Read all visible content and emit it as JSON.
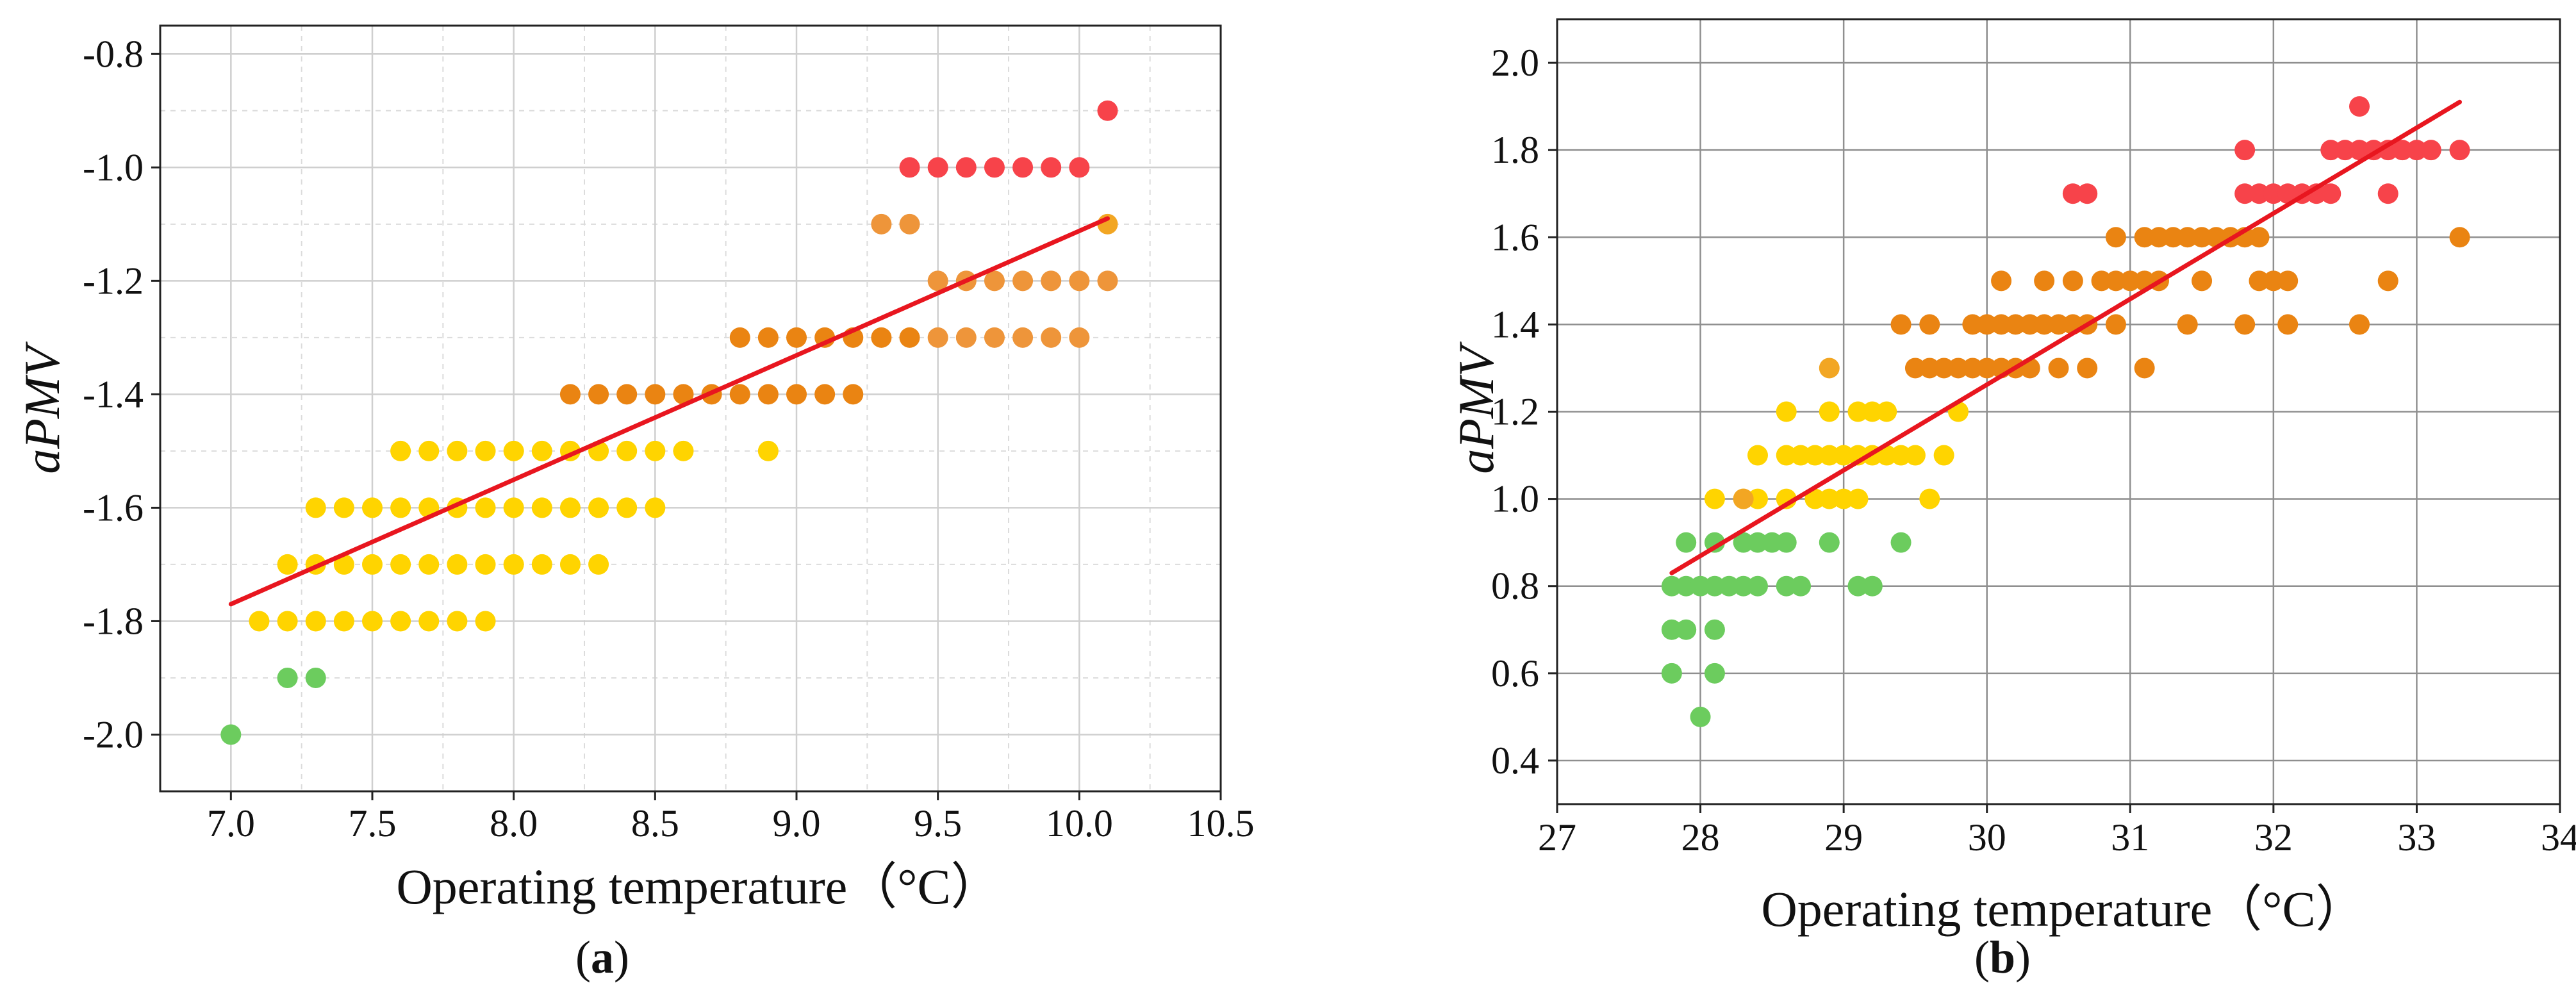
{
  "chart_data": [
    {
      "panel": "a",
      "type": "scatter",
      "caption": {
        "open": "(",
        "letter": "a",
        "close": ")"
      },
      "xlabel": "Operating temperature（°C）",
      "ylabel": "aPMV",
      "xlim": [
        6.75,
        10.5
      ],
      "ylim": [
        -2.1,
        -0.75
      ],
      "x_ticks": [
        {
          "v": 7.0,
          "label": "7.0"
        },
        {
          "v": 7.5,
          "label": "7.5"
        },
        {
          "v": 8.0,
          "label": "8.0"
        },
        {
          "v": 8.5,
          "label": "8.5"
        },
        {
          "v": 9.0,
          "label": "9.0"
        },
        {
          "v": 9.5,
          "label": "9.5"
        },
        {
          "v": 10.0,
          "label": "10.0"
        },
        {
          "v": 10.5,
          "label": "10.5"
        }
      ],
      "y_ticks": [
        {
          "v": -2.0,
          "label": "-2.0"
        },
        {
          "v": -1.8,
          "label": "-1.8"
        },
        {
          "v": -1.6,
          "label": "-1.6"
        },
        {
          "v": -1.4,
          "label": "-1.4"
        },
        {
          "v": -1.2,
          "label": "-1.2"
        },
        {
          "v": -1.0,
          "label": "-1.0"
        },
        {
          "v": -0.8,
          "label": "-0.8"
        }
      ],
      "grid": true,
      "colors": {
        "green": "#6ccc5e",
        "yellow": "#ffd400",
        "amber": "#f2a623",
        "orange": "#ea8412",
        "orangeL": "#ee953a",
        "red": "#f7434a",
        "fit": "#e8161f"
      },
      "fit_line": {
        "x": [
          7.0,
          10.1
        ],
        "y": [
          -1.77,
          -1.09
        ]
      },
      "groups": [
        {
          "color": "green",
          "y": -2.0,
          "x": [
            7.0
          ]
        },
        {
          "color": "green",
          "y": -1.9,
          "x": [
            7.2,
            7.3
          ]
        },
        {
          "color": "yellow",
          "y": -1.8,
          "x": [
            7.1,
            7.2,
            7.3,
            7.4,
            7.5,
            7.6,
            7.7,
            7.8,
            7.9
          ]
        },
        {
          "color": "yellow",
          "y": -1.7,
          "x": [
            7.2,
            7.3,
            7.4,
            7.5,
            7.6,
            7.7,
            7.8,
            7.9,
            8.0,
            8.1,
            8.2,
            8.3
          ]
        },
        {
          "color": "yellow",
          "y": -1.6,
          "x": [
            7.3,
            7.4,
            7.5,
            7.6,
            7.7,
            7.8,
            7.9,
            8.0,
            8.1,
            8.2,
            8.3,
            8.4,
            8.5
          ]
        },
        {
          "color": "yellow",
          "y": -1.5,
          "x": [
            7.6,
            7.7,
            7.8,
            7.9,
            8.0,
            8.1,
            8.2,
            8.3,
            8.4,
            8.5,
            8.6,
            8.9
          ]
        },
        {
          "color": "orange",
          "y": -1.4,
          "x": [
            8.2,
            8.3,
            8.4,
            8.5,
            8.6,
            8.7,
            8.8,
            8.9,
            9.0,
            9.1,
            9.2
          ]
        },
        {
          "color": "orange",
          "y": -1.3,
          "x": [
            8.8,
            8.9,
            9.0,
            9.1,
            9.2,
            9.3,
            9.4
          ]
        },
        {
          "color": "orangeL",
          "y": -1.3,
          "x": [
            9.5,
            9.6,
            9.7,
            9.8,
            9.9,
            10.0
          ]
        },
        {
          "color": "orangeL",
          "y": -1.2,
          "x": [
            9.5,
            9.6,
            9.7,
            9.8,
            9.9,
            10.0,
            10.1
          ]
        },
        {
          "color": "orangeL",
          "y": -1.1,
          "x": [
            9.3,
            9.4
          ]
        },
        {
          "color": "amber",
          "y": -1.1,
          "x": [
            10.1
          ]
        },
        {
          "color": "red",
          "y": -1.0,
          "x": [
            9.4,
            9.5,
            9.6,
            9.7,
            9.8,
            9.9,
            10.0
          ]
        },
        {
          "color": "red",
          "y": -0.9,
          "x": [
            10.1
          ]
        }
      ]
    },
    {
      "panel": "b",
      "type": "scatter",
      "caption": {
        "open": "(",
        "letter": "b",
        "close": ")"
      },
      "xlabel": "Operating temperature（°C）",
      "ylabel": "aPMV",
      "xlim": [
        27,
        34
      ],
      "ylim": [
        0.3,
        2.1
      ],
      "x_ticks": [
        {
          "v": 27,
          "label": "27"
        },
        {
          "v": 28,
          "label": "28"
        },
        {
          "v": 29,
          "label": "29"
        },
        {
          "v": 30,
          "label": "30"
        },
        {
          "v": 31,
          "label": "31"
        },
        {
          "v": 32,
          "label": "32"
        },
        {
          "v": 33,
          "label": "33"
        },
        {
          "v": 34,
          "label": "34"
        }
      ],
      "y_ticks": [
        {
          "v": 0.4,
          "label": "0.4"
        },
        {
          "v": 0.6,
          "label": "0.6"
        },
        {
          "v": 0.8,
          "label": "0.8"
        },
        {
          "v": 1.0,
          "label": "1.0"
        },
        {
          "v": 1.2,
          "label": "1.2"
        },
        {
          "v": 1.4,
          "label": "1.4"
        },
        {
          "v": 1.6,
          "label": "1.6"
        },
        {
          "v": 1.8,
          "label": "1.8"
        },
        {
          "v": 2.0,
          "label": "2.0"
        }
      ],
      "grid": true,
      "colors": {
        "green": "#6ccc5e",
        "yellow": "#ffd400",
        "amber": "#f2a623",
        "orange": "#ea8412",
        "orangeL": "#ee953a",
        "red": "#f7434a",
        "fit": "#e8161f"
      },
      "fit_line": {
        "x": [
          27.8,
          33.3
        ],
        "y": [
          0.83,
          1.91
        ]
      },
      "groups": [
        {
          "color": "green",
          "y": 0.5,
          "x": [
            28.0
          ]
        },
        {
          "color": "green",
          "y": 0.6,
          "x": [
            27.8,
            28.1
          ]
        },
        {
          "color": "green",
          "y": 0.7,
          "x": [
            27.8,
            27.9,
            28.1
          ]
        },
        {
          "color": "green",
          "y": 0.8,
          "x": [
            27.8,
            27.9,
            28.0,
            28.1,
            28.2,
            28.3,
            28.4,
            28.6,
            28.7,
            29.1,
            29.2
          ]
        },
        {
          "color": "green",
          "y": 0.9,
          "x": [
            27.9,
            28.1,
            28.3,
            28.4,
            28.5,
            28.6,
            28.9,
            29.4
          ]
        },
        {
          "color": "yellow",
          "y": 1.0,
          "x": [
            28.1,
            28.3,
            28.4,
            28.6,
            28.8,
            28.9,
            29.0,
            29.1,
            29.6
          ]
        },
        {
          "color": "yellow",
          "y": 1.1,
          "x": [
            28.4,
            28.6,
            28.7,
            28.8,
            28.9,
            29.0,
            29.1,
            29.2,
            29.3,
            29.4,
            29.5,
            29.7
          ]
        },
        {
          "color": "yellow",
          "y": 1.2,
          "x": [
            28.6,
            28.9,
            29.1,
            29.2,
            29.3,
            29.8
          ]
        },
        {
          "color": "amber",
          "y": 1.0,
          "x": [
            28.3
          ]
        },
        {
          "color": "amber",
          "y": 1.3,
          "x": [
            28.9
          ]
        },
        {
          "color": "orange",
          "y": 1.3,
          "x": [
            29.5,
            29.6,
            29.7,
            29.8,
            29.9,
            30.0,
            30.1,
            30.2,
            30.3,
            30.5,
            30.7,
            31.1
          ]
        },
        {
          "color": "orange",
          "y": 1.4,
          "x": [
            29.4,
            29.6,
            29.9,
            30.0,
            30.1,
            30.2,
            30.3,
            30.4,
            30.5,
            30.6,
            30.7,
            30.9,
            31.4,
            31.8,
            32.1,
            32.6
          ]
        },
        {
          "color": "orange",
          "y": 1.5,
          "x": [
            30.1,
            30.4,
            30.6,
            30.8,
            30.9,
            31.0,
            31.1,
            31.2,
            31.5,
            31.9,
            32.0,
            32.1,
            32.8
          ]
        },
        {
          "color": "orange",
          "y": 1.6,
          "x": [
            30.9,
            31.1,
            31.2,
            31.3,
            31.4,
            31.5,
            31.6,
            31.7,
            31.8,
            31.9,
            33.3
          ]
        },
        {
          "color": "red",
          "y": 1.7,
          "x": [
            30.6,
            30.7,
            31.8,
            31.9,
            32.0,
            32.1,
            32.2,
            32.3,
            32.4,
            32.8
          ]
        },
        {
          "color": "red",
          "y": 1.8,
          "x": [
            31.8,
            32.4,
            32.5,
            32.6,
            32.7,
            32.8,
            32.9,
            33.0,
            33.1,
            33.3
          ]
        },
        {
          "color": "red",
          "y": 1.9,
          "x": [
            32.6
          ]
        }
      ]
    }
  ]
}
